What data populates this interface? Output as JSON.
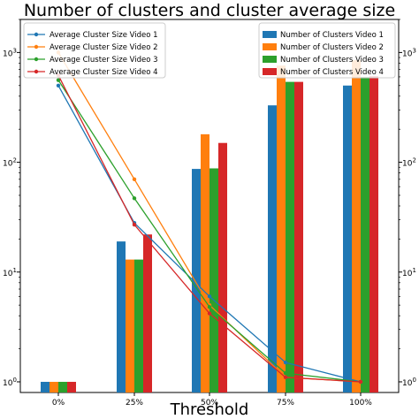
{
  "chart_data": {
    "type": "bar",
    "title": "Number of clusters and cluster average size",
    "xlabel": "Threshold",
    "ylabel": "",
    "yscale": "log",
    "ylim": [
      0.8,
      2000
    ],
    "categories": [
      "0%",
      "25%",
      "50%",
      "75%",
      "100%"
    ],
    "y_ticks": [
      {
        "value": 1,
        "base": "10",
        "exp": "0"
      },
      {
        "value": 10,
        "base": "10",
        "exp": "1"
      },
      {
        "value": 100,
        "base": "10",
        "exp": "2"
      },
      {
        "value": 1000,
        "base": "10",
        "exp": "3"
      }
    ],
    "legend_left_placement": "upper-left",
    "legend_right_placement": "upper-right",
    "grid": false,
    "bar_series": [
      {
        "name": "Number of Clusters Video 1",
        "color": "#1f77b4",
        "values": [
          1,
          19,
          87,
          330,
          500
        ]
      },
      {
        "name": "Number of Clusters Video 2",
        "color": "#ff7f0e",
        "values": [
          1,
          13,
          180,
          760,
          850
        ]
      },
      {
        "name": "Number of Clusters Video 3",
        "color": "#2ca02c",
        "values": [
          1,
          13,
          88,
          540,
          600
        ]
      },
      {
        "name": "Number of Clusters Video 4",
        "color": "#d62728",
        "values": [
          1,
          22,
          150,
          540,
          610
        ]
      }
    ],
    "line_series": [
      {
        "name": "Average Cluster Size Video 1",
        "color": "#1f77b4",
        "values": [
          500,
          28,
          6,
          1.5,
          1
        ]
      },
      {
        "name": "Average Cluster Size Video 2",
        "color": "#ff7f0e",
        "values": [
          1000,
          70,
          5,
          1.1,
          1
        ]
      },
      {
        "name": "Average Cluster Size Video 3",
        "color": "#2ca02c",
        "values": [
          560,
          47,
          4.8,
          1.2,
          1
        ]
      },
      {
        "name": "Average Cluster Size Video 4",
        "color": "#d62728",
        "values": [
          620,
          27,
          4.2,
          1.1,
          1
        ]
      }
    ]
  }
}
